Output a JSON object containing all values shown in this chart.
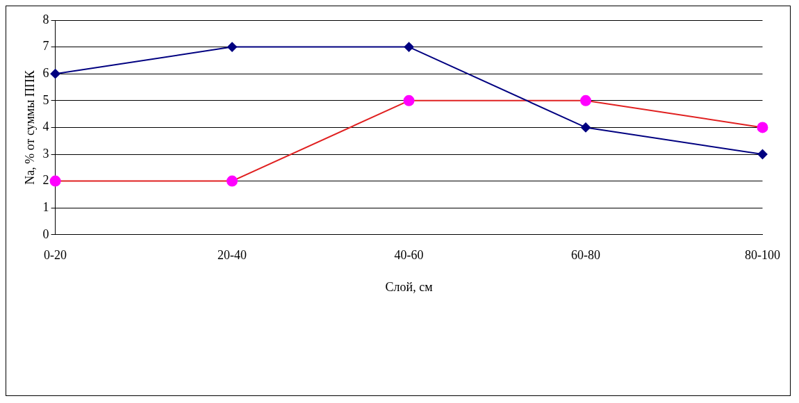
{
  "chart_data": {
    "type": "line",
    "xlabel": "Слой, см",
    "ylabel": "Na, % от суммы ППК",
    "categories": [
      "0-20",
      "20-40",
      "40-60",
      "60-80",
      "80-100"
    ],
    "series": [
      {
        "name": null,
        "color": "#000080",
        "marker": "diamond",
        "values": [
          6,
          7,
          7,
          4,
          3
        ]
      },
      {
        "name": null,
        "color": "#e02020",
        "colors": [
          "#ff00ff",
          "#ff00ff",
          "#ff00ff",
          "#ff00ff",
          "#ff00ff"
        ],
        "marker": "circle",
        "values": [
          2,
          2,
          5,
          5,
          4
        ]
      }
    ],
    "ylim": [
      0,
      8
    ],
    "yticks": [
      0,
      1,
      2,
      3,
      4,
      5,
      6,
      7,
      8
    ],
    "grid": "y",
    "line_style": "solid",
    "legend": false
  }
}
